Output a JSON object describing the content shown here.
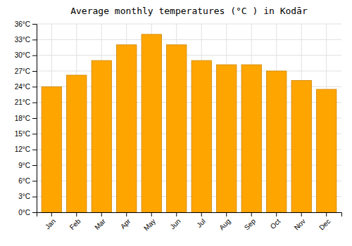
{
  "chart_data": {
    "type": "bar",
    "title": "Average monthly temperatures (°C ) in Kodār",
    "categories": [
      "Jan",
      "Feb",
      "Mar",
      "Apr",
      "May",
      "Jun",
      "Jul",
      "Aug",
      "Sep",
      "Oct",
      "Nov",
      "Dec"
    ],
    "values": [
      24.0,
      26.2,
      29.0,
      32.0,
      34.0,
      32.0,
      29.0,
      28.2,
      28.2,
      27.0,
      25.2,
      23.5
    ],
    "color": "#FFA500",
    "ylim": [
      0,
      36
    ],
    "yticks": [
      {
        "value": 0,
        "label": "0°C"
      },
      {
        "value": 3,
        "label": "3°C"
      },
      {
        "value": 6,
        "label": "6°C"
      },
      {
        "value": 9,
        "label": "9°C"
      },
      {
        "value": 12,
        "label": "12°C"
      },
      {
        "value": 15,
        "label": "15°C"
      },
      {
        "value": 18,
        "label": "18°C"
      },
      {
        "value": 21,
        "label": "21°C"
      },
      {
        "value": 24,
        "label": "24°C"
      },
      {
        "value": 27,
        "label": "27°C"
      },
      {
        "value": 30,
        "label": "30°C"
      },
      {
        "value": 33,
        "label": "33°C"
      },
      {
        "value": 36,
        "label": "36°C"
      }
    ],
    "grid": true
  }
}
